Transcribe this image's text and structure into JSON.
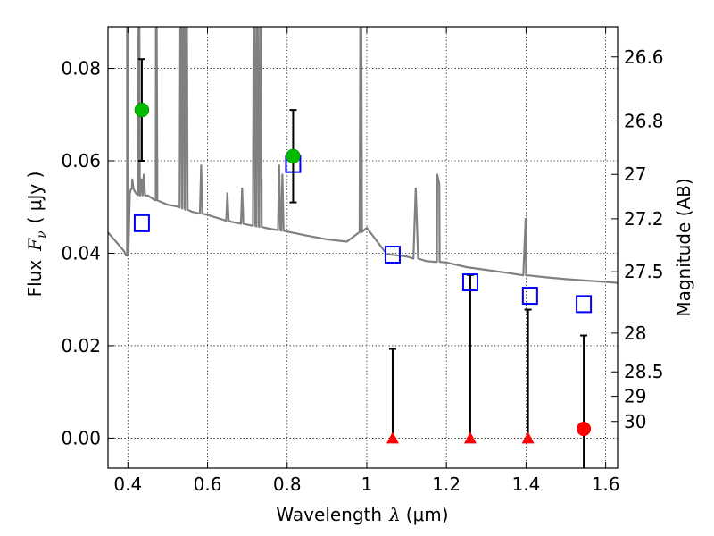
{
  "chart_data": {
    "type": "scatter",
    "xlabel_main": "Wavelength",
    "xlabel_symbol": "λ",
    "xlabel_unit": "(μm)",
    "ylabel_main": "Flux",
    "ylabel_symbol": "F",
    "ylabel_sub": "ν",
    "ylabel_unit": "( μJy )",
    "y2label": "Magnitude (AB)",
    "xlim": [
      0.35,
      1.63
    ],
    "ylim": [
      -0.0065,
      0.089
    ],
    "xticks": [
      0.4,
      0.6,
      0.8,
      1.0,
      1.2,
      1.4,
      1.6
    ],
    "xtick_labels": [
      "0.4",
      "0.6",
      "0.8",
      "1",
      "1.2",
      "1.4",
      "1.6"
    ],
    "yticks": [
      0.0,
      0.02,
      0.04,
      0.06,
      0.08
    ],
    "ytick_labels": [
      "0.00",
      "0.02",
      "0.04",
      "0.06",
      "0.08"
    ],
    "mag_ticks": [
      26.6,
      26.8,
      27,
      27.2,
      27.5,
      28,
      28.5,
      29,
      30
    ],
    "mag_tick_labels": [
      "26.6",
      "26.8",
      "27",
      "27.2",
      "27.5",
      "28",
      "28.5",
      "29",
      "30"
    ],
    "grid": true,
    "colors": {
      "template": "#808080",
      "model": "#0000ff",
      "detection": "#00bb00",
      "nondetection": "#ff0000",
      "errorbar": "#000000",
      "grid": "#000000"
    },
    "template_spectrum": {
      "x": [
        0.35,
        0.36,
        0.375,
        0.39,
        0.398,
        0.401,
        0.405,
        0.41,
        0.42,
        0.43,
        0.45,
        0.47,
        0.5,
        0.53,
        0.56,
        0.6,
        0.63,
        0.66,
        0.7,
        0.75,
        0.8,
        0.85,
        0.9,
        0.95,
        1.0,
        1.05,
        1.1,
        1.15,
        1.2,
        1.25,
        1.3,
        1.35,
        1.4,
        1.45,
        1.5,
        1.55,
        1.6,
        1.63
      ],
      "y": [
        0.0445,
        0.0435,
        0.042,
        0.0405,
        0.0395,
        0.05,
        0.053,
        0.054,
        0.053,
        0.0525,
        0.0525,
        0.0515,
        0.0505,
        0.05,
        0.049,
        0.0483,
        0.0475,
        0.0468,
        0.0462,
        0.0454,
        0.0447,
        0.0438,
        0.043,
        0.0425,
        0.0455,
        0.0398,
        0.0393,
        0.0383,
        0.038,
        0.037,
        0.0364,
        0.0358,
        0.0352,
        0.0348,
        0.0344,
        0.0341,
        0.0338,
        0.0336
      ]
    },
    "emission_lines": [
      {
        "x": 0.398,
        "peak": 0.12
      },
      {
        "x": 0.411,
        "peak": 0.056
      },
      {
        "x": 0.428,
        "peak": 0.12
      },
      {
        "x": 0.434,
        "peak": 0.056
      },
      {
        "x": 0.44,
        "peak": 0.057
      },
      {
        "x": 0.471,
        "peak": 0.12
      },
      {
        "x": 0.533,
        "peak": 0.12
      },
      {
        "x": 0.54,
        "peak": 0.12
      },
      {
        "x": 0.547,
        "peak": 0.12
      },
      {
        "x": 0.584,
        "peak": 0.059
      },
      {
        "x": 0.65,
        "peak": 0.053
      },
      {
        "x": 0.687,
        "peak": 0.054
      },
      {
        "x": 0.717,
        "peak": 0.12
      },
      {
        "x": 0.725,
        "peak": 0.12
      },
      {
        "x": 0.733,
        "peak": 0.12
      },
      {
        "x": 0.78,
        "peak": 0.059
      },
      {
        "x": 0.788,
        "peak": 0.057
      },
      {
        "x": 0.985,
        "peak": 0.12
      },
      {
        "x": 1.123,
        "peak": 0.054
      },
      {
        "x": 1.177,
        "peak": 0.057
      },
      {
        "x": 1.182,
        "peak": 0.055
      },
      {
        "x": 1.399,
        "peak": 0.0475
      }
    ],
    "series": [
      {
        "kind": "model-photometry",
        "x": [
          0.435,
          0.815,
          1.065,
          1.26,
          1.41,
          1.545
        ],
        "y": [
          0.0465,
          0.0593,
          0.0397,
          0.0337,
          0.0308,
          0.029
        ]
      },
      {
        "kind": "detection",
        "x": [
          0.435,
          0.815
        ],
        "y": [
          0.071,
          0.061
        ],
        "yerr": [
          0.011,
          0.01
        ]
      },
      {
        "kind": "upper-limit",
        "x": [
          1.065,
          1.26,
          1.405,
          1.545
        ],
        "y": [
          0.0,
          0.0,
          0.0,
          0.002
        ],
        "err_top": [
          0.0193,
          0.0353,
          0.0278,
          0.0222
        ],
        "err_bottom": [
          0.0,
          0.0,
          0.0,
          -0.0065
        ],
        "marker": [
          "triangle",
          "triangle",
          "triangle",
          "circle"
        ]
      }
    ]
  }
}
